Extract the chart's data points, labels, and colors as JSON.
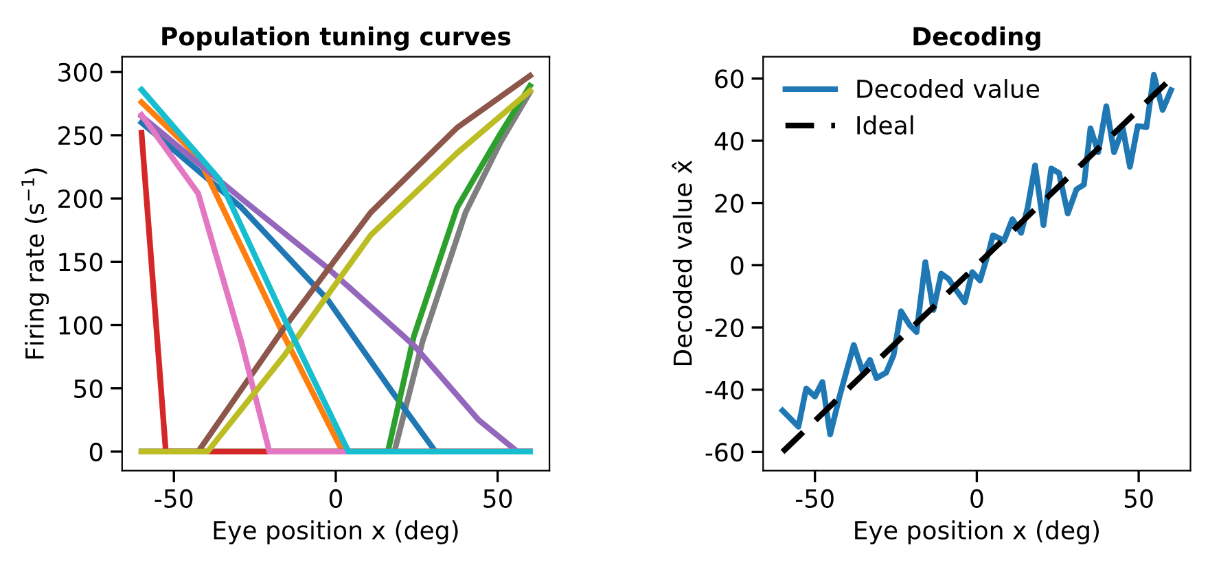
{
  "chart_data": [
    {
      "type": "line",
      "title": "Population tuning curves",
      "xlabel": "Eye position x (deg)",
      "ylabel": "Firing rate (s$^{−1}$)",
      "xlim": [
        -66,
        66
      ],
      "xticks": [
        -50,
        0,
        50
      ],
      "ylim": [
        -15,
        312
      ],
      "yticks": [
        0,
        50,
        100,
        150,
        200,
        250,
        300
      ],
      "grid": false,
      "legend": false,
      "series": [
        {
          "color": "#7f7f7f",
          "x": [
            -60,
            18.1,
            26.8,
            40.1,
            50.8,
            60
          ],
          "values": [
            0,
            0,
            87,
            189,
            244,
            284
          ]
        },
        {
          "color": "#1f77b4",
          "x": [
            -60,
            -29.2,
            -2.5,
            17.5,
            30.8,
            60
          ],
          "values": [
            260,
            193,
            120,
            47,
            0,
            0
          ]
        },
        {
          "color": "#ff7f0e",
          "x": [
            -60,
            -42.5,
            -15.9,
            2.1,
            60
          ],
          "values": [
            276,
            233,
            91,
            0,
            0
          ]
        },
        {
          "color": "#2ca02c",
          "x": [
            -60,
            16.1,
            24.1,
            37.5,
            50.8,
            60
          ],
          "values": [
            0,
            0,
            91,
            193,
            251,
            289
          ]
        },
        {
          "color": "#d62728",
          "x": [
            -60,
            -52.5,
            60
          ],
          "values": [
            252,
            0,
            0
          ]
        },
        {
          "color": "#9467bd",
          "x": [
            -60,
            -29.2,
            -2.5,
            24.1,
            44.1,
            56.1,
            60
          ],
          "values": [
            265,
            200,
            145,
            84,
            25,
            0,
            0
          ]
        },
        {
          "color": "#8c564b",
          "x": [
            -60,
            -42.5,
            -15.9,
            10.8,
            37.5,
            60
          ],
          "values": [
            0,
            0,
            98,
            189,
            256,
            297
          ]
        },
        {
          "color": "#e377c2",
          "x": [
            -60,
            -42.5,
            -29.2,
            -20.5,
            60
          ],
          "values": [
            266,
            204,
            87,
            0,
            0
          ]
        },
        {
          "color": "#bcbd22",
          "x": [
            -60,
            -39.6,
            -15.9,
            10.8,
            37.5,
            60
          ],
          "values": [
            0,
            0,
            76,
            171,
            236,
            285
          ]
        },
        {
          "color": "#17becf",
          "x": [
            -60,
            -35.9,
            -15.9,
            3.9,
            60
          ],
          "values": [
            286,
            215,
            105,
            0,
            0
          ]
        }
      ]
    },
    {
      "type": "line",
      "title": "Decoding",
      "xlabel": "Eye position x (deg)",
      "ylabel": "Decoded value x̂",
      "xlim": [
        -66,
        66
      ],
      "xticks": [
        -50,
        0,
        50
      ],
      "ylim": [
        -66,
        67
      ],
      "yticks": [
        -60,
        -40,
        -20,
        0,
        20,
        40,
        60
      ],
      "grid": false,
      "legend": "top left",
      "series": [
        {
          "name": "Decoded value",
          "color": "#1f77b4",
          "line_style": "solid",
          "x": [
            -60,
            -55.1,
            -52.7,
            -50.0,
            -47.7,
            -45.3,
            -42.4,
            -38.0,
            -35.3,
            -33.0,
            -31.0,
            -28.0,
            -25.7,
            -23.4,
            -20.7,
            -18.6,
            -15.9,
            -13.4,
            -11.0,
            -8.7,
            -6.3,
            -3.7,
            -1.4,
            1.0,
            3.7,
            5.0,
            8.4,
            11.0,
            13.7,
            15.7,
            18.0,
            20.6,
            23.0,
            25.4,
            28.1,
            30.8,
            33.1,
            35.1,
            37.5,
            40.0,
            42.4,
            45.1,
            47.3,
            49.7,
            52.4,
            54.7,
            57.4,
            60.0
          ],
          "values": [
            -46.7,
            -51.9,
            -39.6,
            -42.2,
            -37.5,
            -54.4,
            -42.2,
            -25.6,
            -34.1,
            -30.4,
            -36.3,
            -34.5,
            -28.9,
            -14.8,
            -19.3,
            -21.5,
            1.0,
            -14.4,
            -2.7,
            -4.4,
            -8.1,
            -11.9,
            -2.2,
            -4.9,
            4.4,
            9.6,
            7.9,
            14.8,
            10.4,
            18.5,
            32.1,
            12.9,
            31.1,
            29.6,
            16.6,
            24.4,
            25.9,
            44.0,
            36.3,
            51.1,
            36.3,
            44.0,
            31.6,
            44.7,
            44.4,
            61.2,
            49.9,
            56.3
          ]
        },
        {
          "name": "Ideal",
          "color": "#000000",
          "line_style": "dashed",
          "x": [
            -60,
            60
          ],
          "values": [
            -60,
            60
          ]
        }
      ]
    }
  ]
}
